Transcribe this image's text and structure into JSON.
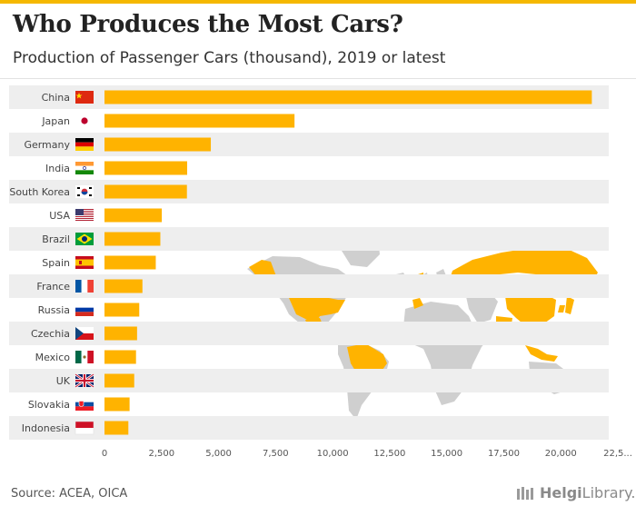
{
  "header": {
    "title": "Who Produces the Most Cars?",
    "subtitle": "Production of Passenger Cars (thousand), 2019 or latest"
  },
  "footer": {
    "source": "Source: ACEA, OICA",
    "brand_bold": "Helgi",
    "brand_light": "Library."
  },
  "colors": {
    "bar": "#ffb300",
    "row_band": "#eeeeee",
    "map_land": "#cfcfcf",
    "map_highlight": "#ffb300"
  },
  "chart_data": {
    "type": "bar",
    "orientation": "horizontal",
    "categories": [
      "China",
      "Japan",
      "Germany",
      "India",
      "South Korea",
      "USA",
      "Brazil",
      "Spain",
      "France",
      "Russia",
      "Czechia",
      "Mexico",
      "UK",
      "Slovakia",
      "Indonesia"
    ],
    "flag_icons": [
      "flag-cn-icon",
      "flag-jp-icon",
      "flag-de-icon",
      "flag-in-icon",
      "flag-kr-icon",
      "flag-us-icon",
      "flag-br-icon",
      "flag-es-icon",
      "flag-fr-icon",
      "flag-ru-icon",
      "flag-cz-icon",
      "flag-mx-icon",
      "flag-gb-icon",
      "flag-sk-icon",
      "flag-id-icon"
    ],
    "values": [
      21360,
      8329,
      4661,
      3623,
      3613,
      2512,
      2448,
      2248,
      1663,
      1524,
      1428,
      1382,
      1303,
      1100,
      1046
    ],
    "xlim": [
      0,
      22500
    ],
    "xticks": [
      "0",
      "2,500",
      "5,000",
      "7,500",
      "10,000",
      "12,500",
      "15,000",
      "17,500",
      "20,000",
      "22,5..."
    ],
    "xlabel": "",
    "ylabel": "",
    "grid": false,
    "legend": "none"
  }
}
